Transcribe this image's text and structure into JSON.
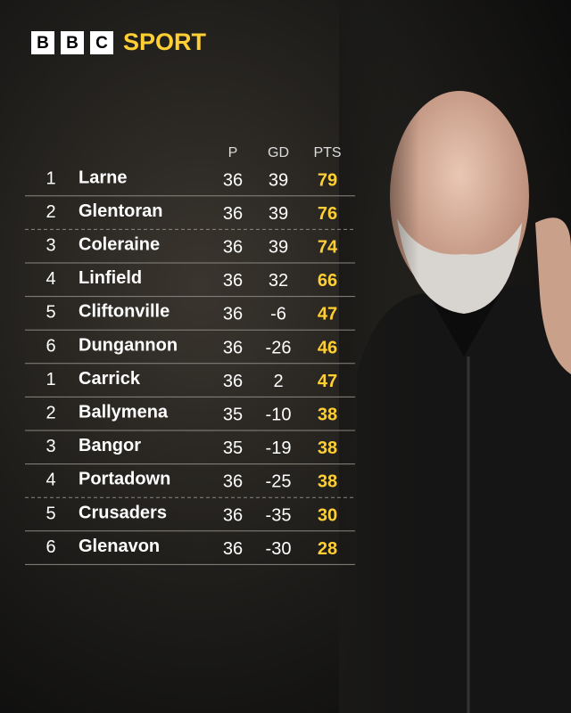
{
  "header": {
    "logo_letters": [
      "B",
      "B",
      "C"
    ],
    "brand": "SPORT"
  },
  "table": {
    "columns": [
      "P",
      "GD",
      "PTS"
    ],
    "rows": [
      [
        1,
        "Larne",
        36,
        39,
        79
      ],
      [
        2,
        "Glentoran",
        36,
        39,
        76
      ],
      [
        3,
        "Coleraine",
        36,
        39,
        74
      ],
      [
        4,
        "Linfield",
        36,
        32,
        66
      ],
      [
        5,
        "Cliftonville",
        36,
        -6,
        47
      ],
      [
        6,
        "Dungannon",
        36,
        -26,
        46
      ],
      [
        1,
        "Carrick",
        36,
        2,
        47
      ],
      [
        2,
        "Ballymena",
        35,
        -10,
        38
      ],
      [
        3,
        "Bangor",
        35,
        -19,
        38
      ],
      [
        4,
        "Portadown",
        36,
        -25,
        38
      ],
      [
        5,
        "Crusaders",
        36,
        -35,
        30
      ],
      [
        6,
        "Glenavon",
        36,
        -30,
        28
      ]
    ]
  }
}
